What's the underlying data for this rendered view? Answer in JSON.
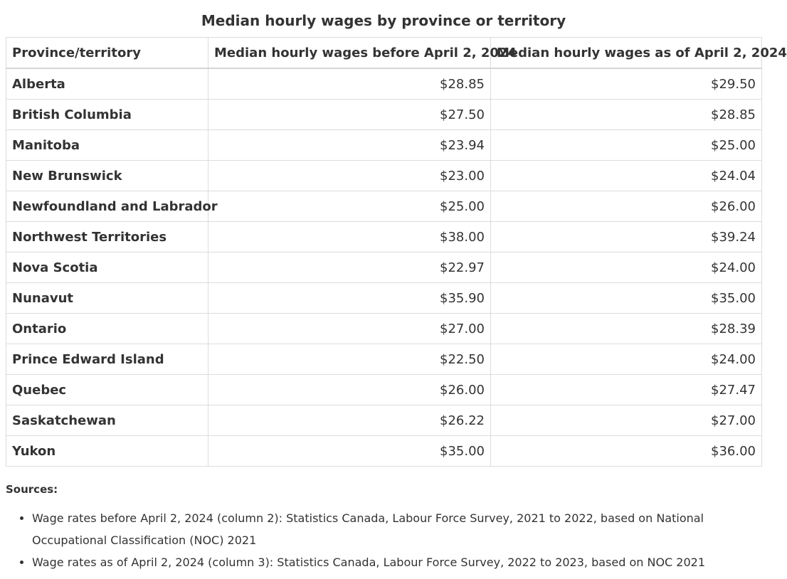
{
  "table": {
    "caption": "Median hourly wages by province or territory",
    "headers": [
      "Province/territory",
      "Median hourly wages before April 2, 2024",
      "Median hourly wages as of April 2, 2024"
    ],
    "rows": [
      {
        "province": "Alberta",
        "before": "$28.85",
        "as_of": "$29.50"
      },
      {
        "province": "British Columbia",
        "before": "$27.50",
        "as_of": "$28.85"
      },
      {
        "province": "Manitoba",
        "before": "$23.94",
        "as_of": "$25.00"
      },
      {
        "province": "New Brunswick",
        "before": "$23.00",
        "as_of": "$24.04"
      },
      {
        "province": "Newfoundland and Labrador",
        "before": "$25.00",
        "as_of": "$26.00"
      },
      {
        "province": "Northwest Territories",
        "before": "$38.00",
        "as_of": "$39.24"
      },
      {
        "province": "Nova Scotia",
        "before": "$22.97",
        "as_of": "$24.00"
      },
      {
        "province": "Nunavut",
        "before": "$35.90",
        "as_of": "$35.00"
      },
      {
        "province": "Ontario",
        "before": "$27.00",
        "as_of": "$28.39"
      },
      {
        "province": "Prince Edward Island",
        "before": "$22.50",
        "as_of": "$24.00"
      },
      {
        "province": "Quebec",
        "before": "$26.00",
        "as_of": "$27.47"
      },
      {
        "province": "Saskatchewan",
        "before": "$26.22",
        "as_of": "$27.00"
      },
      {
        "province": "Yukon",
        "before": "$35.00",
        "as_of": "$36.00"
      }
    ]
  },
  "sources": {
    "title": "Sources:",
    "items": [
      "Wage rates before April 2, 2024 (column 2): Statistics Canada, Labour Force Survey, 2021 to 2022, based on National Occupational Classification (NOC) 2021",
      "Wage rates as of April 2, 2024 (column 3): Statistics Canada, Labour Force Survey, 2022 to 2023, based on NOC 2021"
    ]
  }
}
